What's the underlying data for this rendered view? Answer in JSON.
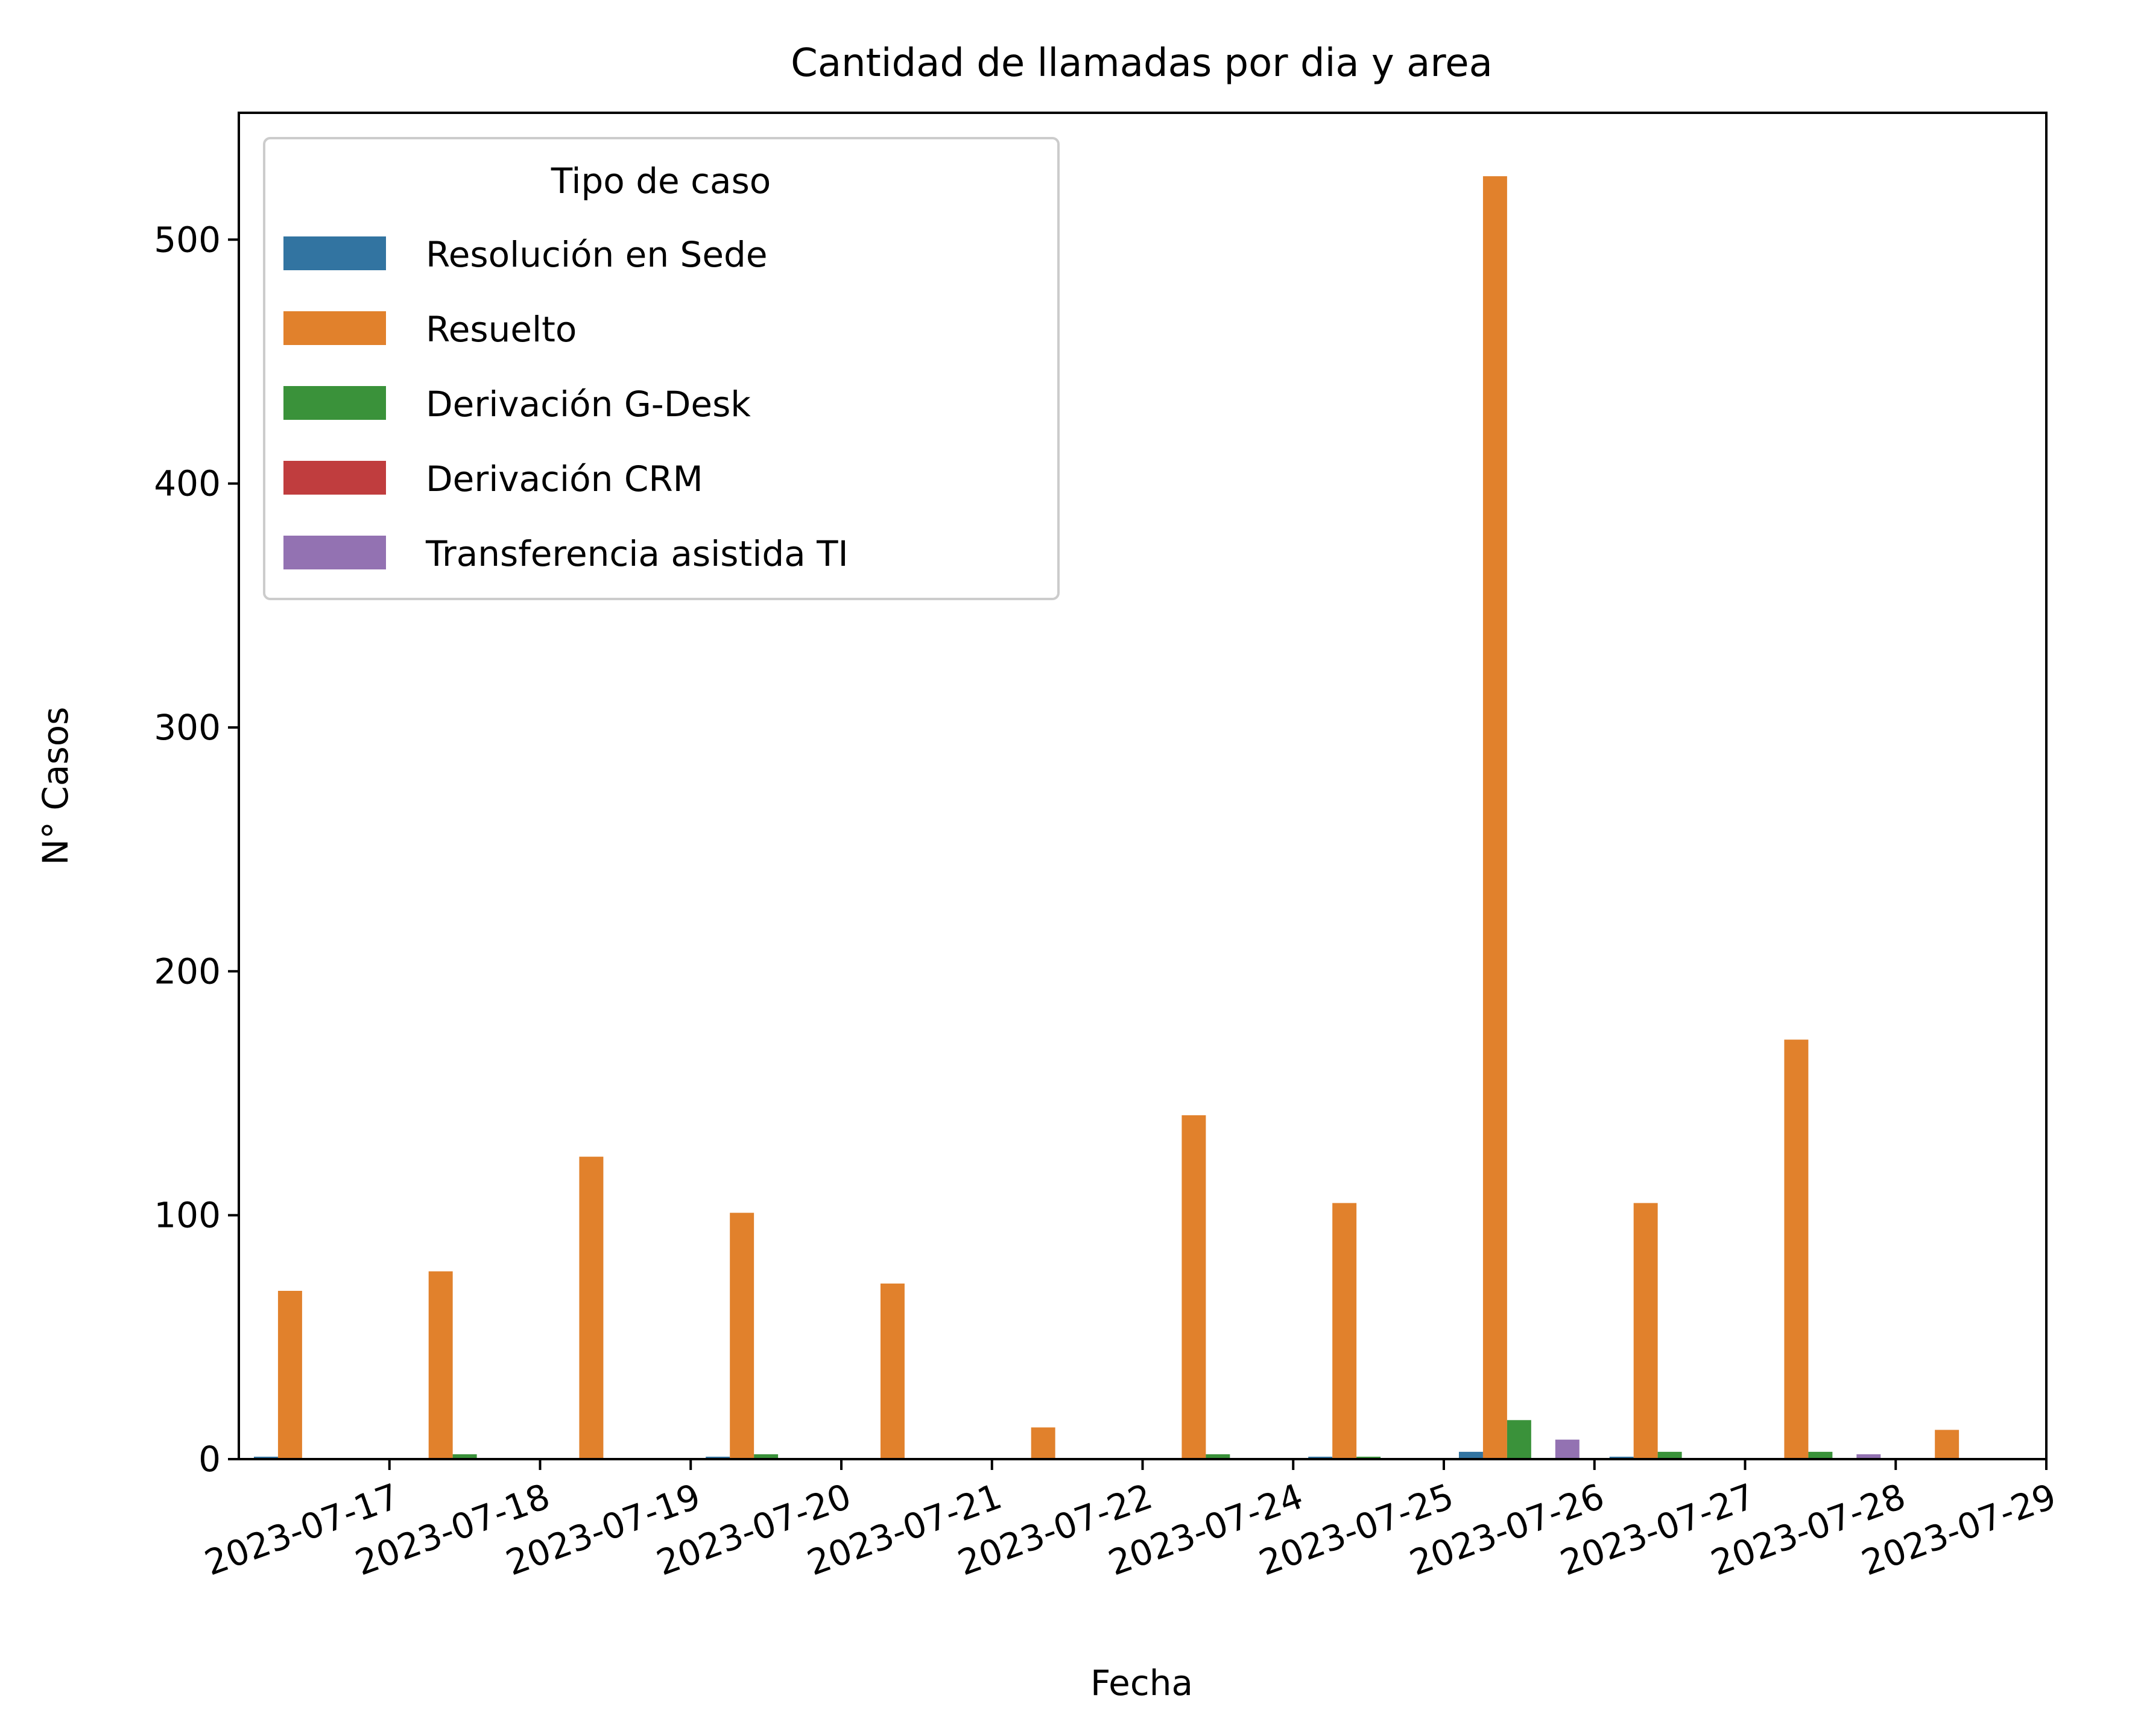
{
  "chart_data": {
    "type": "bar",
    "title": "Cantidad de llamadas por dia y area",
    "xlabel": "Fecha",
    "ylabel": "N° Casos",
    "ylim": [
      0,
      552
    ],
    "yticks": [
      0,
      100,
      200,
      300,
      400,
      500
    ],
    "grid": false,
    "legend": {
      "title": "Tipo de caso",
      "placement": "top-left"
    },
    "categories": [
      "2023-07-17",
      "2023-07-18",
      "2023-07-19",
      "2023-07-20",
      "2023-07-21",
      "2023-07-22",
      "2023-07-24",
      "2023-07-25",
      "2023-07-26",
      "2023-07-27",
      "2023-07-28",
      "2023-07-29"
    ],
    "series": [
      {
        "name": "Resolución en Sede",
        "color": "#3274a1",
        "values": [
          1,
          0,
          0,
          1,
          0,
          0,
          0,
          1,
          3,
          1,
          0,
          0
        ]
      },
      {
        "name": "Resuelto",
        "color": "#e1812c",
        "values": [
          69,
          77,
          124,
          101,
          72,
          13,
          141,
          105,
          526,
          105,
          172,
          12
        ]
      },
      {
        "name": "Derivación G-Desk",
        "color": "#3a923a",
        "values": [
          0,
          2,
          0,
          2,
          0,
          0,
          2,
          1,
          16,
          3,
          3,
          0
        ]
      },
      {
        "name": "Derivación CRM",
        "color": "#c03d3e",
        "values": [
          0,
          0,
          0,
          0,
          0,
          0,
          0,
          0,
          0,
          0,
          0,
          0
        ]
      },
      {
        "name": "Transferencia asistida TI",
        "color": "#9372b2",
        "values": [
          0,
          0,
          0,
          0,
          0,
          0,
          0,
          0,
          8,
          0,
          2,
          0
        ]
      }
    ]
  }
}
